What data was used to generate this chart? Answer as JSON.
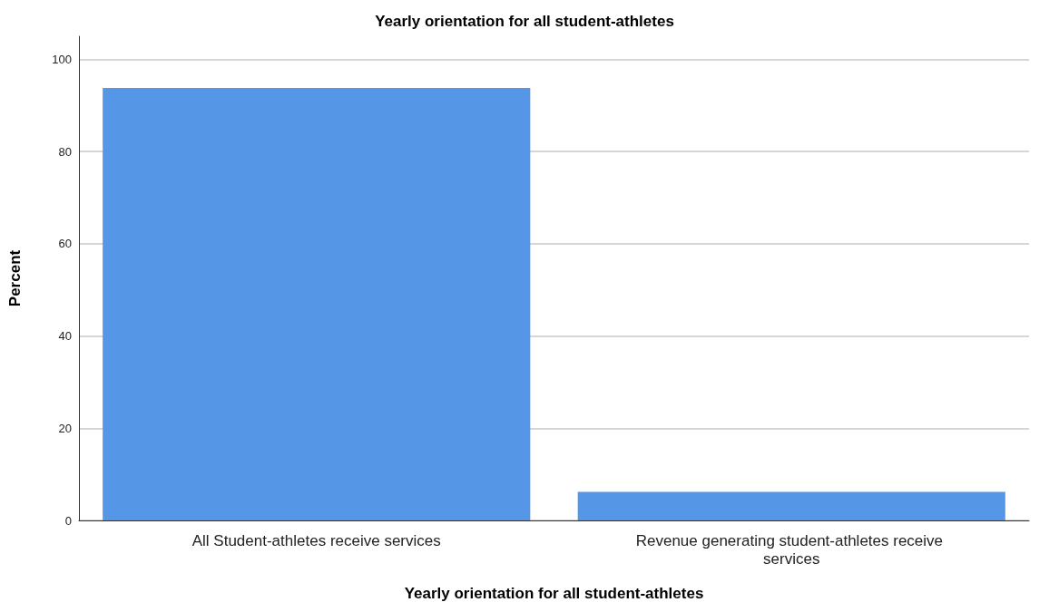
{
  "chart_data": {
    "type": "bar",
    "title": "Yearly orientation for all student-athletes",
    "xlabel": "Yearly orientation for all student-athletes",
    "ylabel": "Percent",
    "categories": [
      "All Student-athletes receive services",
      "Revenue generating student-athletes receive services"
    ],
    "values": [
      93.8,
      6.2
    ],
    "color": "#5596e6",
    "ylim": [
      0,
      105
    ],
    "yticks": [
      0,
      20,
      40,
      60,
      80,
      100
    ],
    "grid": "y"
  }
}
